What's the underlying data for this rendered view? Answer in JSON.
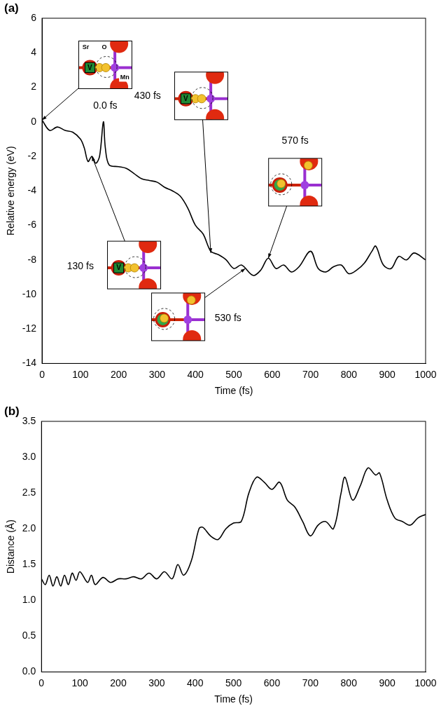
{
  "chart_data": [
    {
      "type": "line",
      "panel": "(a)",
      "x_label": "Time (fs)",
      "y_label": "Relative energy (eV)",
      "color": "#000000",
      "grid": false,
      "xlim": [
        0,
        1000
      ],
      "xticks": [
        0,
        100,
        200,
        300,
        400,
        500,
        600,
        700,
        800,
        900,
        1000
      ],
      "ylim": [
        -14,
        6
      ],
      "yticks": [
        -14,
        -12,
        -10,
        -8,
        -6,
        -4,
        -2,
        0,
        2,
        4,
        6
      ],
      "x": [
        0,
        20,
        40,
        60,
        80,
        100,
        110,
        120,
        130,
        140,
        150,
        160,
        165,
        175,
        200,
        220,
        240,
        260,
        280,
        300,
        320,
        340,
        360,
        380,
        400,
        420,
        440,
        460,
        480,
        500,
        520,
        550,
        570,
        590,
        610,
        630,
        650,
        670,
        700,
        720,
        740,
        760,
        780,
        800,
        820,
        840,
        860,
        870,
        890,
        910,
        930,
        950,
        970,
        1000
      ],
      "values": [
        0.1,
        -0.5,
        -0.3,
        -0.5,
        -0.6,
        -1.0,
        -1.5,
        -2.3,
        -2.0,
        -2.4,
        -2.0,
        0.0,
        -1.5,
        -2.5,
        -2.6,
        -2.7,
        -3.0,
        -3.3,
        -3.4,
        -3.5,
        -3.8,
        -4.0,
        -4.3,
        -5.0,
        -6.0,
        -6.5,
        -7.5,
        -7.7,
        -8.0,
        -8.5,
        -8.3,
        -8.9,
        -8.6,
        -7.9,
        -8.5,
        -8.3,
        -8.7,
        -8.4,
        -7.5,
        -8.5,
        -8.7,
        -8.4,
        -8.3,
        -8.8,
        -8.6,
        -8.2,
        -7.5,
        -7.2,
        -8.3,
        -8.5,
        -7.8,
        -8.0,
        -7.6,
        -8.0
      ],
      "annotations": [
        {
          "text": "0.0 fs",
          "x": 0,
          "y": 0.1,
          "inset": {
            "labels": [
              "Sr",
              "O",
              "Mn"
            ],
            "vacancy": "V"
          }
        },
        {
          "text": "130 fs",
          "x": 130,
          "y": -2.0,
          "inset": {
            "vacancy": "V"
          }
        },
        {
          "text": "430 fs",
          "x": 440,
          "y": -7.6,
          "inset": {
            "vacancy": "V"
          }
        },
        {
          "text": "570 fs",
          "x": 590,
          "y": -7.9,
          "inset": {}
        },
        {
          "text": "530 fs",
          "x": 530,
          "y": -8.5,
          "inset": {}
        }
      ]
    },
    {
      "type": "line",
      "panel": "(b)",
      "x_label": "Time (fs)",
      "y_label": "Distance (Å)",
      "color": "#000000",
      "grid": false,
      "xlim": [
        0,
        1000
      ],
      "xticks": [
        0,
        100,
        200,
        300,
        400,
        500,
        600,
        700,
        800,
        900,
        1000
      ],
      "ylim": [
        0,
        3.5
      ],
      "yticks": [
        {
          "value": 0,
          "label": "0.0"
        },
        {
          "value": 0.5,
          "label": "0.5"
        },
        {
          "value": 1,
          "label": "1.0"
        },
        {
          "value": 1.5,
          "label": "1.5"
        },
        {
          "value": 2,
          "label": "2.0"
        },
        {
          "value": 2.5,
          "label": "2.5"
        },
        {
          "value": 3,
          "label": "3.0"
        },
        {
          "value": 3.5,
          "label": "3.5"
        }
      ],
      "x": [
        0,
        10,
        20,
        30,
        40,
        50,
        60,
        70,
        80,
        90,
        100,
        120,
        130,
        140,
        160,
        180,
        200,
        220,
        240,
        260,
        280,
        300,
        320,
        340,
        355,
        370,
        390,
        410,
        420,
        440,
        460,
        480,
        500,
        520,
        540,
        560,
        580,
        600,
        620,
        640,
        660,
        680,
        700,
        720,
        740,
        760,
        780,
        790,
        810,
        830,
        850,
        870,
        880,
        900,
        920,
        940,
        960,
        980,
        1000
      ],
      "values": [
        1.3,
        1.22,
        1.35,
        1.2,
        1.33,
        1.2,
        1.35,
        1.22,
        1.38,
        1.28,
        1.4,
        1.25,
        1.35,
        1.22,
        1.32,
        1.25,
        1.3,
        1.3,
        1.33,
        1.3,
        1.38,
        1.3,
        1.4,
        1.3,
        1.5,
        1.35,
        1.55,
        2.0,
        2.02,
        1.9,
        1.85,
        2.0,
        2.08,
        2.1,
        2.5,
        2.72,
        2.65,
        2.55,
        2.65,
        2.4,
        2.3,
        2.1,
        1.9,
        2.05,
        2.1,
        2.0,
        2.5,
        2.72,
        2.4,
        2.6,
        2.85,
        2.75,
        2.78,
        2.4,
        2.15,
        2.1,
        2.05,
        2.15,
        2.2
      ]
    }
  ]
}
